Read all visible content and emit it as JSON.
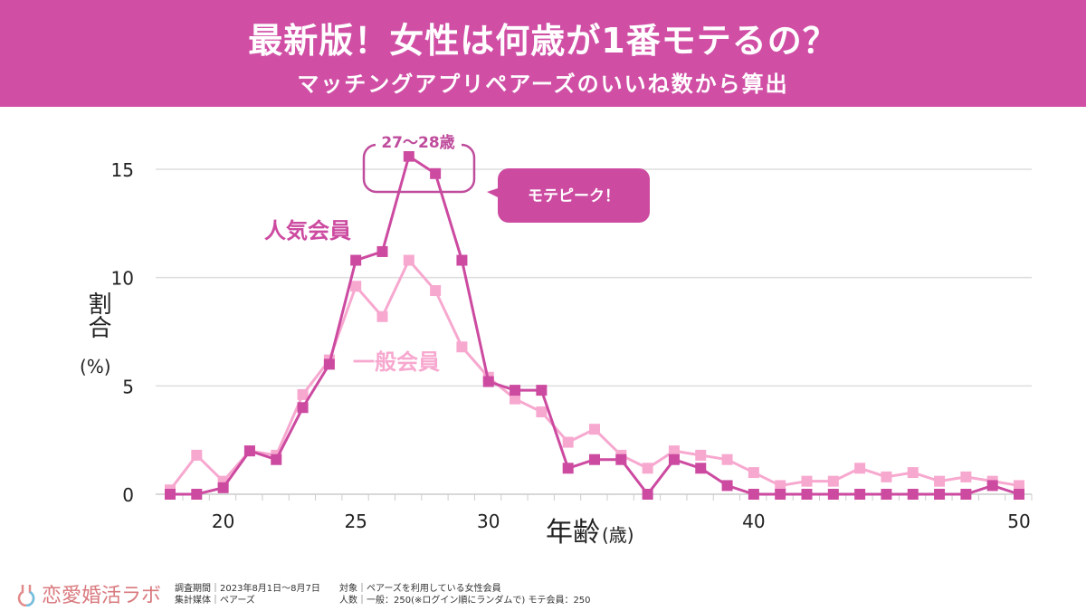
{
  "header": {
    "title": "最新版！女性は何歳が1番モテるの？",
    "subtitle": "マッチングアプリペアーズのいいね数から算出"
  },
  "colors": {
    "header_bg": "#d04fa5",
    "popular": "#cc4aa0",
    "general": "#f7a8cf",
    "logo": "#d9797e"
  },
  "chart_data": {
    "type": "line",
    "xlabel": "年齢",
    "xlabel_unit": "(歳)",
    "ylabel": "割合",
    "ylabel_unit": "(%)",
    "xlim": [
      18,
      50
    ],
    "ylim": [
      0,
      16
    ],
    "xticks": [
      20,
      25,
      30,
      40,
      50
    ],
    "yticks": [
      0,
      5,
      10,
      15
    ],
    "grid": "horizontal",
    "x": [
      18,
      19,
      20,
      21,
      22,
      23,
      24,
      25,
      26,
      27,
      28,
      29,
      30,
      31,
      32,
      33,
      34,
      35,
      36,
      37,
      38,
      39,
      40,
      41,
      42,
      43,
      44,
      45,
      46,
      47,
      48,
      49,
      50
    ],
    "series": [
      {
        "name": "人気会員",
        "color": "#cc4aa0",
        "values": [
          0,
          0,
          0.3,
          2.0,
          1.6,
          4.0,
          6.0,
          10.8,
          11.2,
          15.6,
          14.8,
          10.8,
          5.2,
          4.8,
          4.8,
          1.2,
          1.6,
          1.6,
          0,
          1.6,
          1.2,
          0.4,
          0,
          0,
          0,
          0,
          0,
          0,
          0,
          0,
          0,
          0.4,
          0
        ]
      },
      {
        "name": "一般会員",
        "color": "#f7a8cf",
        "values": [
          0.2,
          1.8,
          0.6,
          2.0,
          1.8,
          4.6,
          6.2,
          9.6,
          8.2,
          10.8,
          9.4,
          6.8,
          5.4,
          4.4,
          3.8,
          2.4,
          3.0,
          1.8,
          1.2,
          2.0,
          1.8,
          1.6,
          1.0,
          0.4,
          0.6,
          0.6,
          1.2,
          0.8,
          1.0,
          0.6,
          0.8,
          0.6,
          0.4
        ]
      }
    ],
    "annotations": {
      "peak_range": "27〜28歳",
      "callout": "モテピーク！"
    }
  },
  "footer": {
    "logo": "恋愛婚活ラボ",
    "line1a": "調査期間｜2023年8月1日〜8月7日",
    "line2a": "集計媒体｜ペアーズ",
    "line1b": "対象｜ペアーズを利用している女性会員",
    "line2b": "人数｜一般：250(※ログイン順にランダムで) モテ会員：250"
  }
}
